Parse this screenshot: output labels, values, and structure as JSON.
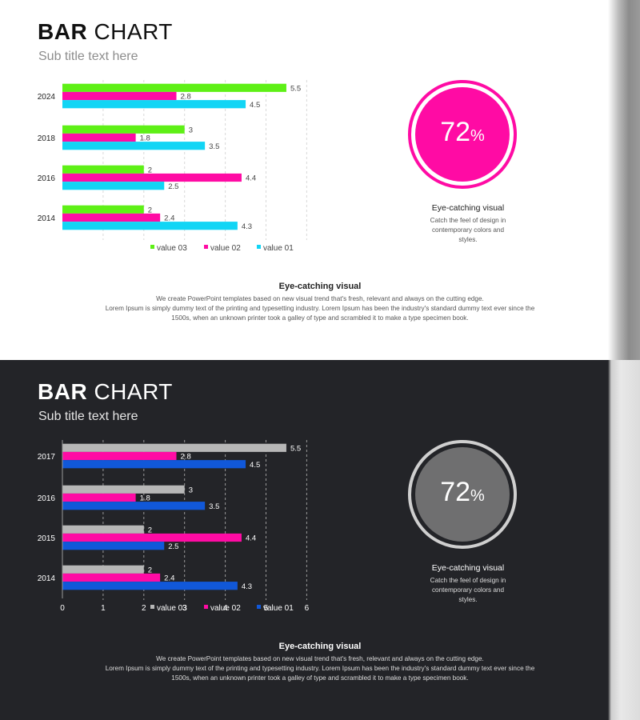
{
  "slides": [
    {
      "title_bold": "BAR",
      "title_rest": "CHART",
      "subtitle": "Sub title text here",
      "kpi": {
        "value": "72",
        "unit": "%",
        "progress": 0.72,
        "heading": "Eye-catching visual",
        "text_lines": [
          "Catch the feel of design in",
          "contemporary colors and",
          "styles."
        ]
      },
      "footer": {
        "heading": "Eye-catching visual",
        "lines": [
          "We create PowerPoint templates based on new visual trend that's fresh, relevant and always on the cutting edge.",
          "Lorem Ipsum is simply dummy text of the printing and typesetting industry. Lorem Ipsum has been the industry's standard dummy text ever since the",
          "1500s, when an unknown printer took a galley of type and scrambled it to make a type specimen book."
        ]
      },
      "colors": {
        "ring": "#ff0ba4",
        "circle": "#ff0ba4",
        "value01": "#12d5f5",
        "value02": "#ff0ba4",
        "value03": "#5ef016",
        "grid": "#d8d8d8",
        "text": "#222222",
        "label": "#444444"
      }
    },
    {
      "title_bold": "BAR",
      "title_rest": "CHART",
      "subtitle": "Sub title text here",
      "kpi": {
        "value": "72",
        "unit": "%",
        "progress": 0.72,
        "heading": "Eye-catching visual",
        "text_lines": [
          "Catch the feel of design in",
          "contemporary colors and",
          "styles."
        ]
      },
      "footer": {
        "heading": "Eye-catching visual",
        "lines": [
          "We create PowerPoint templates based on new visual trend that's fresh, relevant and always on the cutting edge.",
          "Lorem Ipsum is simply dummy text of the printing and typesetting industry. Lorem Ipsum has been the industry's standard dummy text ever since the",
          "1500s, when an unknown printer took a galley of type and scrambled it to make a type specimen book."
        ]
      },
      "colors": {
        "ring": "#cfcfcf",
        "circle": "#6f6f70",
        "value01": "#1158d9",
        "value02": "#ff0ba4",
        "value03": "#b7b7b7",
        "grid": "#9a9a9a",
        "text": "#ffffff",
        "label": "#ffffff"
      }
    }
  ],
  "chart_data": [
    {
      "type": "bar",
      "orientation": "horizontal",
      "categories": [
        "2024",
        "2018",
        "2016",
        "2014"
      ],
      "series": [
        {
          "name": "value 03",
          "values": [
            5.5,
            3,
            2,
            2
          ]
        },
        {
          "name": "value 02",
          "values": [
            2.8,
            1.8,
            4.4,
            2.4
          ]
        },
        {
          "name": "value 01",
          "values": [
            4.5,
            3.5,
            2.5,
            4.3
          ]
        }
      ],
      "xlim": [
        0,
        6
      ],
      "x_ticks": [],
      "legend_position": "bottom",
      "title": "BAR CHART"
    },
    {
      "type": "bar",
      "orientation": "horizontal",
      "categories": [
        "2017",
        "2016",
        "2015",
        "2014"
      ],
      "series": [
        {
          "name": "value 03",
          "values": [
            5.5,
            3,
            2,
            2
          ]
        },
        {
          "name": "value 02",
          "values": [
            2.8,
            1.8,
            4.4,
            2.4
          ]
        },
        {
          "name": "value 01",
          "values": [
            4.5,
            3.5,
            2.5,
            4.3
          ]
        }
      ],
      "xlim": [
        0,
        6
      ],
      "x_ticks": [
        "0",
        "1",
        "2",
        "3",
        "4",
        "5",
        "6"
      ],
      "legend_position": "bottom",
      "title": "BAR CHART"
    }
  ]
}
